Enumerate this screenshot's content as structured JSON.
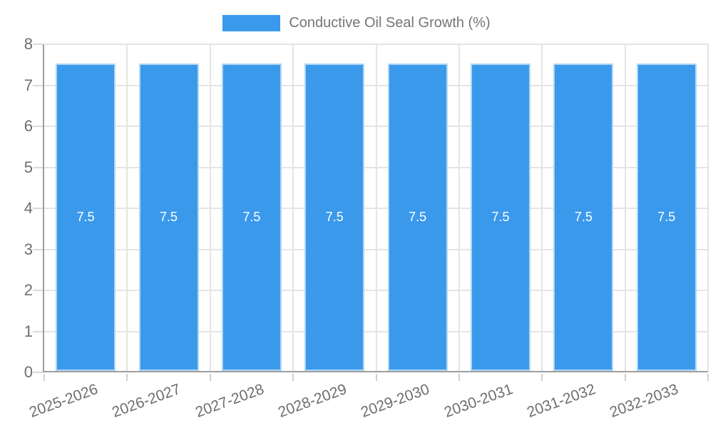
{
  "chart_data": {
    "type": "bar",
    "title": "",
    "legend_position": "top",
    "categories": [
      "2025-2026",
      "2026-2027",
      "2027-2028",
      "2028-2029",
      "2029-2030",
      "2030-2031",
      "2031-2032",
      "2032-2033"
    ],
    "series": [
      {
        "name": "Conductive Oil Seal Growth (%)",
        "values": [
          7.5,
          7.5,
          7.5,
          7.5,
          7.5,
          7.5,
          7.5,
          7.5
        ]
      }
    ],
    "value_labels": [
      "7.5",
      "7.5",
      "7.5",
      "7.5",
      "7.5",
      "7.5",
      "7.5",
      "7.5"
    ],
    "xlabel": "",
    "ylabel": "",
    "ylim": [
      0,
      8
    ],
    "y_ticks": [
      "0",
      "1",
      "2",
      "3",
      "4",
      "5",
      "6",
      "7",
      "8"
    ],
    "grid": true,
    "colors": {
      "bar_fill": "#3B99EC",
      "bar_border": "#AFD7F6",
      "gridline": "#E4E4E4",
      "axis_line": "#9E9E9E",
      "y_tick_mark": "#DADADA",
      "x_tick_mark": "#CFCFCF",
      "tick_text": "#6E6E6E",
      "legend_text": "#757575",
      "bar_label_text": "#FFFFFF",
      "background": "#FFFFFF"
    }
  }
}
